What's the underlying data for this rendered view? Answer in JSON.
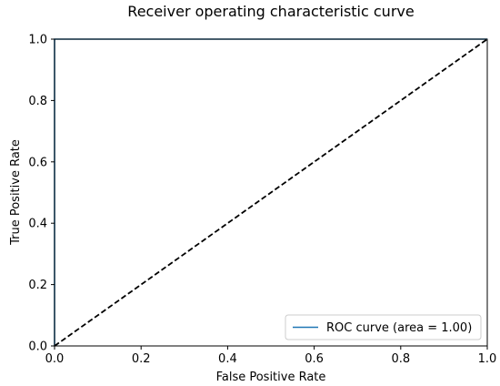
{
  "chart_data": {
    "type": "line",
    "title": "Receiver operating characteristic curve",
    "xlabel": "False Positive Rate",
    "ylabel": "True Positive Rate",
    "xlim": [
      0.0,
      1.0
    ],
    "ylim": [
      0.0,
      1.0
    ],
    "x_ticks": [
      "0.0",
      "0.2",
      "0.4",
      "0.6",
      "0.8",
      "1.0"
    ],
    "y_ticks": [
      "0.0",
      "0.2",
      "0.4",
      "0.6",
      "0.8",
      "1.0"
    ],
    "grid": false,
    "legend_position": "lower-right",
    "series": [
      {
        "name": "ROC curve (area = 1.00)",
        "x": [
          0.0,
          0.0,
          1.0
        ],
        "y": [
          0.0,
          1.0,
          1.0
        ],
        "style": "solid",
        "color": "#1f77b4",
        "in_legend": true
      },
      {
        "x": [
          0.0,
          1.0
        ],
        "y": [
          0.0,
          1.0
        ],
        "style": "dashed",
        "color": "#000000",
        "in_legend": false
      }
    ]
  }
}
